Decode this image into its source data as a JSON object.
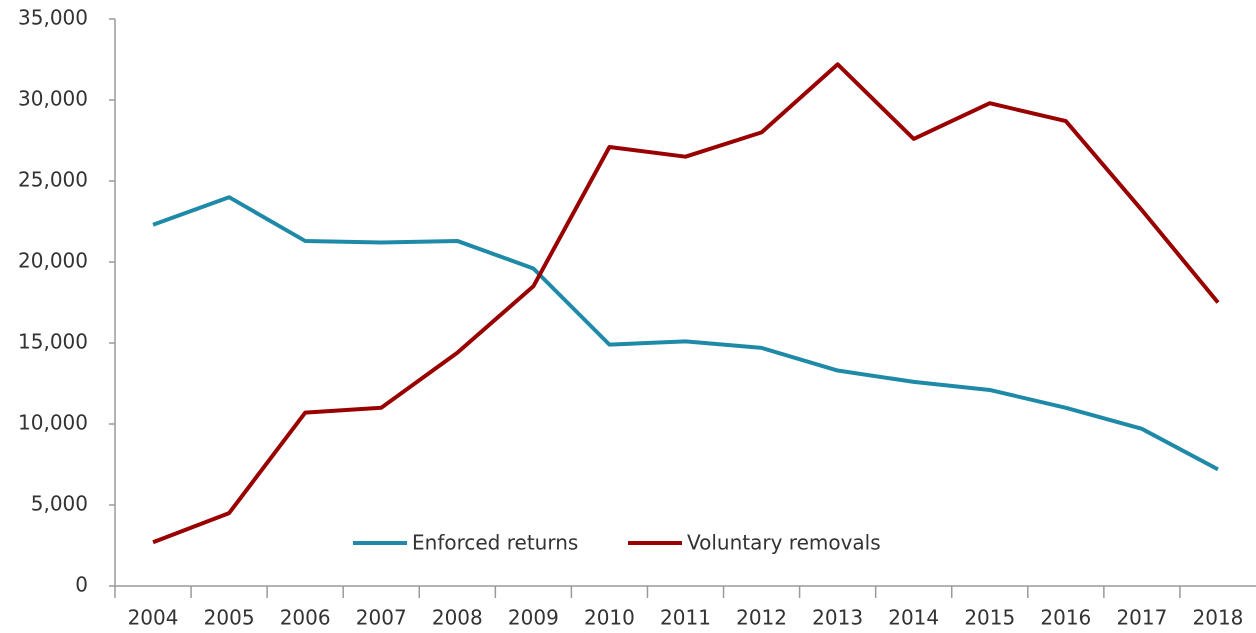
{
  "chart_data": {
    "type": "line",
    "categories": [
      "2004",
      "2005",
      "2006",
      "2007",
      "2008",
      "2009",
      "2010",
      "2011",
      "2012",
      "2013",
      "2014",
      "2015",
      "2016",
      "2017",
      "2018"
    ],
    "series": [
      {
        "name": "Enforced returns",
        "color": "#1f8aa8",
        "values": [
          22300,
          24000,
          21300,
          21200,
          21300,
          19600,
          14900,
          15100,
          14700,
          13300,
          12600,
          12100,
          11000,
          9700,
          7200
        ]
      },
      {
        "name": "Voluntary removals",
        "color": "#990000",
        "values": [
          2700,
          4500,
          10700,
          11000,
          14400,
          18500,
          27100,
          26500,
          28000,
          32200,
          27600,
          29800,
          28700,
          23200,
          17500
        ]
      }
    ],
    "ylim": [
      0,
      35000
    ],
    "yticks": [
      0,
      {
        "value": 5000,
        "label": "5,000"
      },
      {
        "value": 10000,
        "label": "10,000"
      },
      {
        "value": 15000,
        "label": "15,000"
      },
      {
        "value": 20000,
        "label": "20,000"
      },
      {
        "value": 25000,
        "label": "25,000"
      },
      {
        "value": 30000,
        "label": "30,000"
      },
      {
        "value": 35000,
        "label": "35,000"
      }
    ],
    "grid": false,
    "legend": "bottom"
  }
}
